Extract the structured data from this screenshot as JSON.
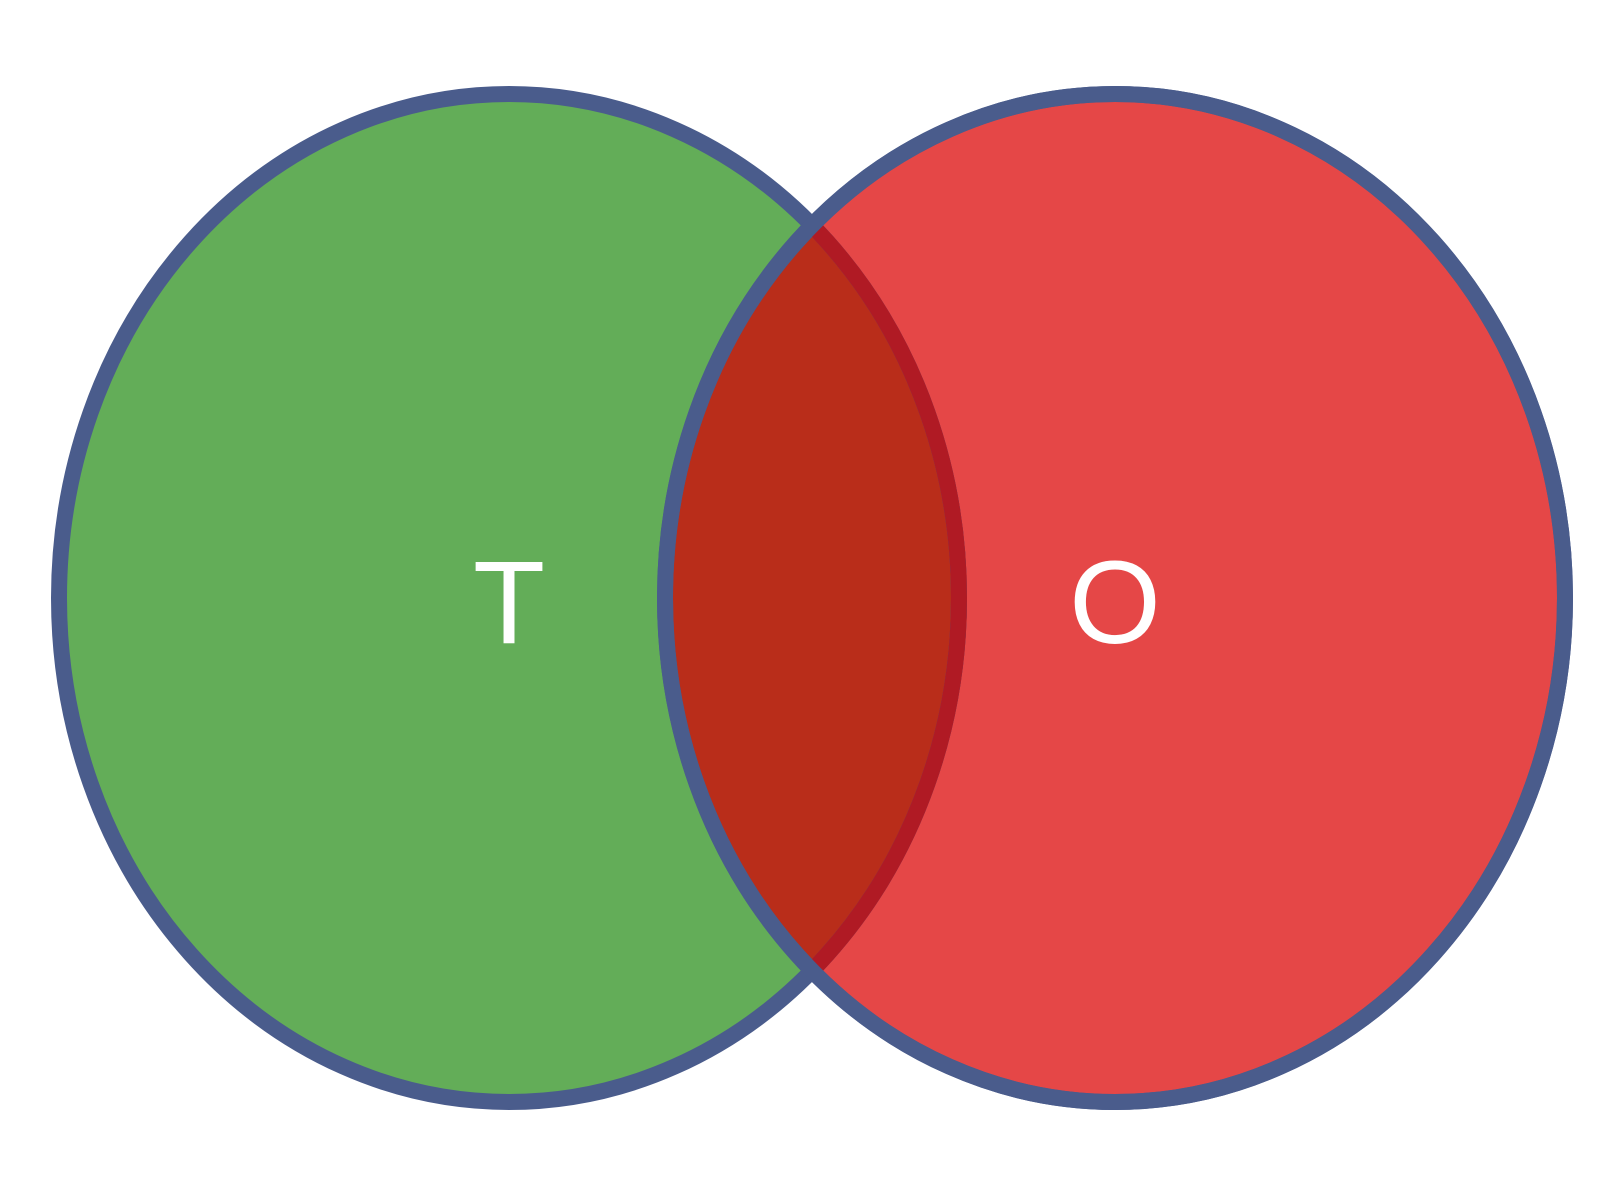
{
  "diagram": {
    "type": "venn",
    "sets": [
      {
        "label": "T",
        "fill": "#63ad58"
      },
      {
        "label": "O",
        "fill": "#e54747"
      }
    ],
    "intersection": {
      "fill": "#b92d1a",
      "inner_stroke": "#b01a24"
    },
    "outline_color": "#4a5c8c",
    "label_color": "#ffffff"
  }
}
